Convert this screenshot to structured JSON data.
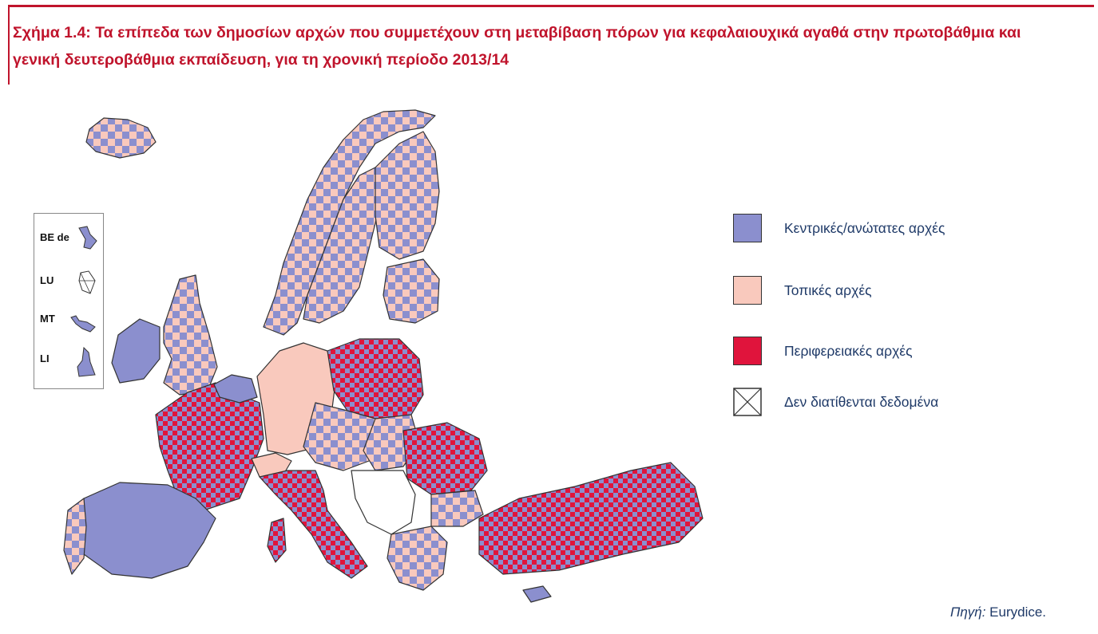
{
  "title": "Σχήμα 1.4: Τα επίπεδα των δημοσίων αρχών που συμμετέχουν στη μεταβίβαση πόρων για κεφαλαιουχικά αγαθά στην πρωτοβάθμια και γενική δευτεροβάθμια εκπαίδευση, για τη χρονική περίοδο 2013/14",
  "inset": {
    "items": [
      {
        "label": "BE de"
      },
      {
        "label": "LU"
      },
      {
        "label": "MT"
      },
      {
        "label": "LI"
      }
    ]
  },
  "legend": [
    {
      "label": "Κεντρικές/ανώτατες αρχές",
      "color": "#8b8fce",
      "icon": "central-swatch"
    },
    {
      "label": "Τοπικές αρχές",
      "color": "#f9c9bd",
      "icon": "local-swatch"
    },
    {
      "label": "Περιφερειακές αρχές",
      "color": "#e0143c",
      "icon": "regional-swatch"
    },
    {
      "label": "Δεν διατίθενται δεδομένα",
      "color": "#ffffff",
      "icon": "no-data-cross-icon"
    }
  ],
  "source": {
    "prefix": "Πηγή:",
    "text": "Eurydice."
  },
  "colors": {
    "central": "#8b8fce",
    "local": "#f9c9bd",
    "regional": "#e0143c",
    "border": "#333333",
    "title": "#c0142c",
    "text": "#1f3a68"
  }
}
